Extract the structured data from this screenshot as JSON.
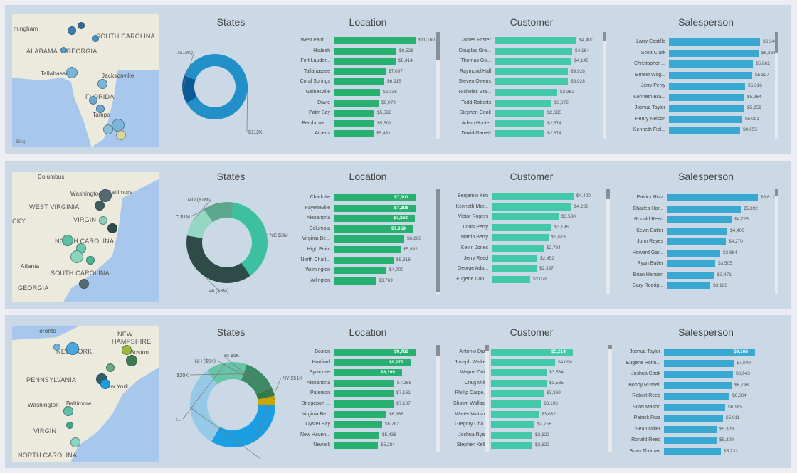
{
  "colors": {
    "donut1": [
      "#2290c8",
      "#0b5a95"
    ],
    "donut2": [
      "#3cc0a0",
      "#2e4b48",
      "#95d6c2",
      "#5ca88e"
    ],
    "donut3": [
      "#1b9ee2",
      "#95c9e6",
      "#67c4a7",
      "#3c8a63",
      "#2f7a48",
      "#c9a600"
    ],
    "location": "#28b070",
    "customer": "#43c8a8",
    "salesperson": "#3aa9d2"
  },
  "panels": [
    {
      "titles": {
        "states": "States",
        "location": "Location",
        "customer": "Customer",
        "salesperson": "Salesperson"
      },
      "map": {
        "labels": [
          "mingham",
          "SOUTH CAROLINA",
          "ALABAMA",
          "GEORGIA",
          "Tallahassee",
          "Jacksonville",
          "FLORIDA",
          "Tampa"
        ],
        "bing": "Bing"
      },
      "states": {
        "slices": [
          {
            "label": "FL",
            "value": 112,
            "text": "$112K"
          },
          {
            "label": "GA",
            "value": 18,
            "text": "GA ($18K)"
          }
        ]
      },
      "location": [
        {
          "name": "West Palm ...",
          "value": 11160,
          "label": "$11,160"
        },
        {
          "name": "Hialeah",
          "value": 8528,
          "label": "$8,528"
        },
        {
          "name": "Fort Lauder...",
          "value": 8414,
          "label": "$8,414"
        },
        {
          "name": "Tallahassee",
          "value": 7097,
          "label": "$7,097"
        },
        {
          "name": "Coral Springs",
          "value": 6915,
          "label": "$6,915"
        },
        {
          "name": "Gainesville",
          "value": 6336,
          "label": "$6,336"
        },
        {
          "name": "Davie",
          "value": 6079,
          "label": "$6,079"
        },
        {
          "name": "Palm Bay",
          "value": 5568,
          "label": "$5,568"
        },
        {
          "name": "Pembroke ...",
          "value": 5502,
          "label": "$5,502"
        },
        {
          "name": "Athens",
          "value": 5431,
          "label": "$5,431"
        }
      ],
      "customer": [
        {
          "name": "James Foster",
          "value": 4400,
          "label": "$4,400"
        },
        {
          "name": "Douglas Gre...",
          "value": 4164,
          "label": "$4,164"
        },
        {
          "name": "Thomas Go...",
          "value": 4140,
          "label": "$4,140"
        },
        {
          "name": "Raymond Hall",
          "value": 3928,
          "label": "$3,928"
        },
        {
          "name": "Steven Owens",
          "value": 3928,
          "label": "$3,928"
        },
        {
          "name": "Nicholas Sta...",
          "value": 3362,
          "label": "$3,362"
        },
        {
          "name": "Todd Roberts",
          "value": 3072,
          "label": "$3,072"
        },
        {
          "name": "Stephen Cook",
          "value": 2685,
          "label": "$2,685"
        },
        {
          "name": "Adam Hunter",
          "value": 2674,
          "label": "$2,674"
        },
        {
          "name": "David Garrett",
          "value": 2674,
          "label": "$2,674"
        }
      ],
      "salesperson": [
        {
          "name": "Larry Castillo",
          "value": 6348,
          "label": "$6,348"
        },
        {
          "name": "Scott Clark",
          "value": 6269,
          "label": "$6,269"
        },
        {
          "name": "Christopher ...",
          "value": 5862,
          "label": "$5,862"
        },
        {
          "name": "Ernest Wag...",
          "value": 5827,
          "label": "$5,827"
        },
        {
          "name": "Jerry Perry",
          "value": 5316,
          "label": "$5,316"
        },
        {
          "name": "Kenneth Bra...",
          "value": 5264,
          "label": "$5,264"
        },
        {
          "name": "Joshua Taylor",
          "value": 5259,
          "label": "$5,259"
        },
        {
          "name": "Henry Nelson",
          "value": 5091,
          "label": "$5,091"
        },
        {
          "name": "Kenneth Fiel...",
          "value": 4955,
          "label": "$4,955"
        }
      ]
    },
    {
      "titles": {
        "states": "States",
        "location": "Location",
        "customer": "Customer",
        "salesperson": "Salesperson"
      },
      "map": {
        "labels": [
          "Columbus",
          "Washington",
          "Baltimore",
          "WEST VIRGINIA",
          "VIRGIN",
          "CKY",
          "NORTH CAROLINA",
          "Atlanta",
          "SOUTH CAROLINA",
          "GEORGIA"
        ],
        "bing": ""
      },
      "states": {
        "slices": [
          {
            "label": "NC",
            "value": 3,
            "text": "NC $3M"
          },
          {
            "label": "VA",
            "value": 3,
            "text": "VA ($3M)"
          },
          {
            "label": "MD",
            "value": 1,
            "text": "MD ($1M)"
          },
          {
            "label": "SC",
            "value": 1,
            "text": "SC $1M"
          }
        ]
      },
      "location": [
        {
          "name": "Charlotte",
          "value": 7301,
          "label": "$7,301",
          "inside": true
        },
        {
          "name": "Fayetteville",
          "value": 7308,
          "label": "$7,308",
          "inside": true
        },
        {
          "name": "Alexandria",
          "value": 7268,
          "label": "$7,268",
          "inside": true
        },
        {
          "name": "Columbia",
          "value": 7059,
          "label": "$7,059",
          "inside": true
        },
        {
          "name": "Virginia Be...",
          "value": 6268,
          "label": "$6,268"
        },
        {
          "name": "High Point",
          "value": 5992,
          "label": "$5,992"
        },
        {
          "name": "North Charl...",
          "value": 5316,
          "label": "$5,316"
        },
        {
          "name": "Wilmington",
          "value": 4700,
          "label": "$4,700"
        },
        {
          "name": "Arlington",
          "value": 3769,
          "label": "$3,769"
        }
      ],
      "customer": [
        {
          "name": "Benjamin Kim",
          "value": 4400,
          "label": "$4,400"
        },
        {
          "name": "Kenneth Mar...",
          "value": 4288,
          "label": "$4,288"
        },
        {
          "name": "Victor Rogers",
          "value": 3580,
          "label": "$3,580"
        },
        {
          "name": "Louis Perry",
          "value": 3196,
          "label": "$3,196"
        },
        {
          "name": "Martin Berry",
          "value": 3073,
          "label": "$3,073"
        },
        {
          "name": "Kevin Jones",
          "value": 2784,
          "label": "$2,784"
        },
        {
          "name": "Jerry Reed",
          "value": 2452,
          "label": "$2,452"
        },
        {
          "name": "George Ada...",
          "value": 2397,
          "label": "$2,397"
        },
        {
          "name": "Eugene Cun...",
          "value": 2078,
          "label": "$2,078"
        }
      ],
      "salesperson": [
        {
          "name": "Patrick Ruiz",
          "value": 6612,
          "label": "$6,612"
        },
        {
          "name": "Charles Har...",
          "value": 5392,
          "label": "$5,392"
        },
        {
          "name": "Ronald Reed",
          "value": 4725,
          "label": "$4,725"
        },
        {
          "name": "Kevin Butler",
          "value": 4400,
          "label": "$4,400"
        },
        {
          "name": "John Reyes",
          "value": 4270,
          "label": "$4,270"
        },
        {
          "name": "Howard Gar...",
          "value": 3864,
          "label": "$3,864"
        },
        {
          "name": "Ryan Butler",
          "value": 3505,
          "label": "$3,505"
        },
        {
          "name": "Brian Hansen",
          "value": 3471,
          "label": "$3,471"
        },
        {
          "name": "Gary Rodrig...",
          "value": 3166,
          "label": "$3,166"
        }
      ]
    },
    {
      "titles": {
        "states": "States",
        "location": "Location",
        "customer": "Customer",
        "salesperson": "Salesperson"
      },
      "map": {
        "labels": [
          "Toronto",
          "NEW",
          "HAMPSHIRE",
          "NEW YORK",
          "Boston",
          "PENNSYLVANIA",
          "New York",
          "Washington",
          "Baltimore",
          "VIRGIN",
          "NORTH CAROLINA"
        ],
        "bing": ""
      },
      "states": {
        "slices": [
          {
            "label": "NY",
            "value": 51,
            "text": "NY $51K"
          },
          {
            "label": "CT",
            "value": 48,
            "text": "CT ($48K)"
          },
          {
            "label": "NJ",
            "value": 24,
            "text": "NJ $2..."
          },
          {
            "label": "MA",
            "value": 20,
            "text": "MA $20K"
          },
          {
            "label": "NH",
            "value": 5,
            "text": "NH ($5K)"
          },
          {
            "label": "RI",
            "value": 5,
            "text": "RI $5K"
          }
        ]
      },
      "location": [
        {
          "name": "Boston",
          "value": 9788,
          "label": "$9,788",
          "inside": true
        },
        {
          "name": "Hartford",
          "value": 9177,
          "label": "$9,177",
          "inside": true
        },
        {
          "name": "Syracuse",
          "value": 8199,
          "label": "$8,199",
          "inside": true
        },
        {
          "name": "Alexandria",
          "value": 7268,
          "label": "$7,268"
        },
        {
          "name": "Paterson",
          "value": 7161,
          "label": "$7,161"
        },
        {
          "name": "Bridgeport ...",
          "value": 7107,
          "label": "$7,107"
        },
        {
          "name": "Virginia Be...",
          "value": 6268,
          "label": "$6,268"
        },
        {
          "name": "Oyster Bay",
          "value": 5782,
          "label": "$5,782"
        },
        {
          "name": "New Haven...",
          "value": 5436,
          "label": "$5,436"
        },
        {
          "name": "Newark",
          "value": 5284,
          "label": "$5,284"
        }
      ],
      "customer": [
        {
          "name": "Antonio Diaz",
          "value": 5214,
          "label": "$5,214",
          "inside": true
        },
        {
          "name": "Joseph Walker",
          "value": 4096,
          "label": "$4,096"
        },
        {
          "name": "Wayne Ortiz",
          "value": 3534,
          "label": "$3,534"
        },
        {
          "name": "Craig Mills",
          "value": 3535,
          "label": "$3,535"
        },
        {
          "name": "Phillip Carpe...",
          "value": 3369,
          "label": "$3,369"
        },
        {
          "name": "Shawn Wallace",
          "value": 3196,
          "label": "$3,196"
        },
        {
          "name": "Walter Watson",
          "value": 3032,
          "label": "$3,032"
        },
        {
          "name": "Gregory Cha...",
          "value": 2756,
          "label": "$2,756"
        },
        {
          "name": "Joshua Ryan",
          "value": 2622,
          "label": "$2,622"
        },
        {
          "name": "Stephen Kelly",
          "value": 2622,
          "label": "$2,622"
        }
      ],
      "salesperson": [
        {
          "name": "Joshua Taylor",
          "value": 9168,
          "label": "$9,168",
          "inside": true
        },
        {
          "name": "Eugene Holm...",
          "value": 7040,
          "label": "$7,040"
        },
        {
          "name": "Joshua Cook",
          "value": 6943,
          "label": "$6,943"
        },
        {
          "name": "Bobby Russell",
          "value": 6798,
          "label": "$6,798"
        },
        {
          "name": "Robert Reed",
          "value": 6604,
          "label": "$6,604"
        },
        {
          "name": "Scott Mason",
          "value": 6185,
          "label": "$6,185"
        },
        {
          "name": "Patrick Ruiz",
          "value": 5911,
          "label": "$5,911"
        },
        {
          "name": "Sean Miller",
          "value": 5329,
          "label": "$5,329"
        },
        {
          "name": "Ronald Reed",
          "value": 5329,
          "label": "$5,329"
        },
        {
          "name": "Brian Thomas",
          "value": 5732,
          "label": "$5,732"
        }
      ]
    }
  ]
}
